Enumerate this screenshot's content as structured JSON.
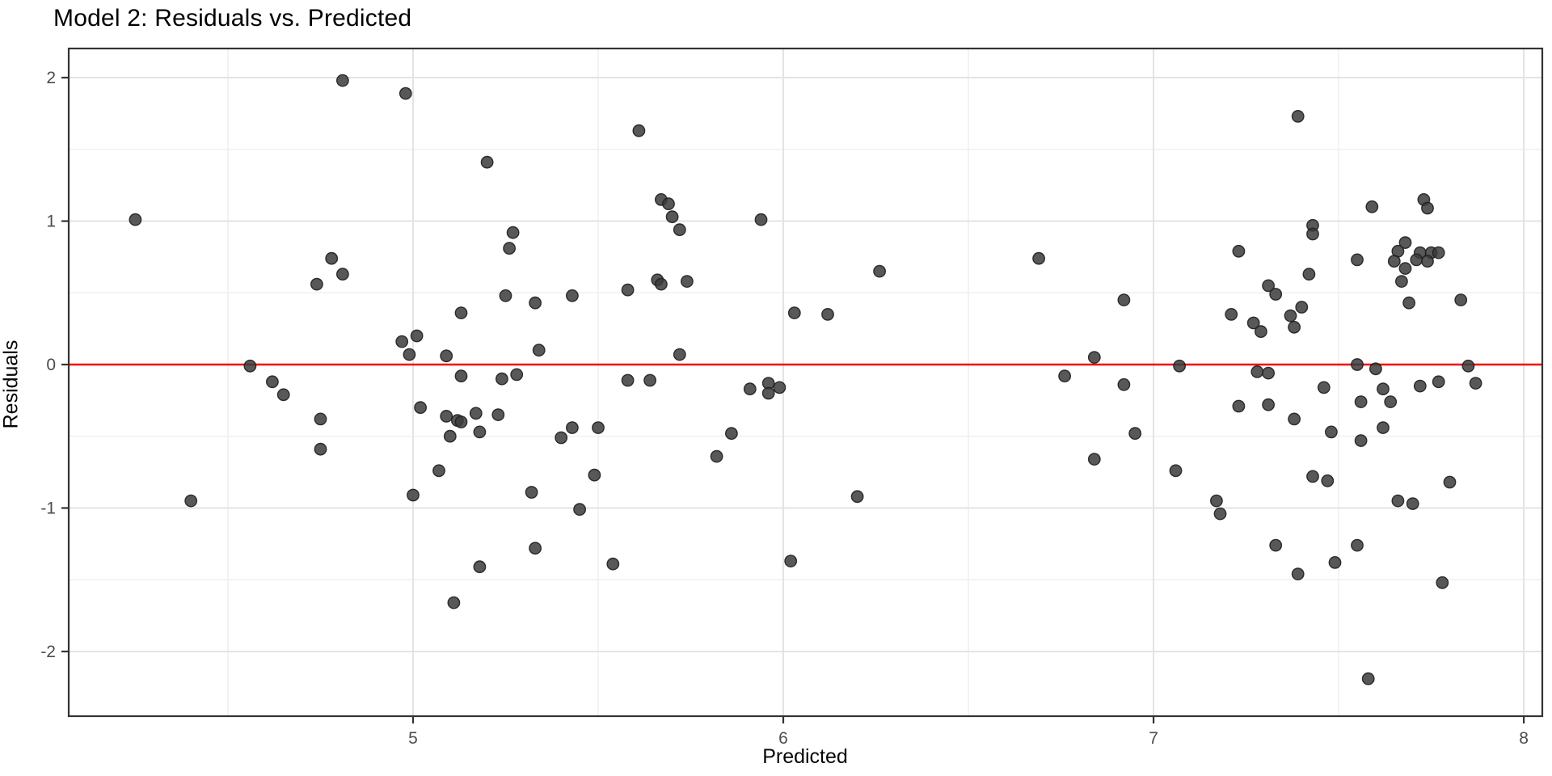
{
  "chart_data": {
    "type": "scatter",
    "title": "Model 2: Residuals vs. Predicted",
    "xlabel": "Predicted",
    "ylabel": "Residuals",
    "xlim": [
      4.07,
      8.05
    ],
    "ylim": [
      -2.451,
      2.203
    ],
    "x_major_ticks": [
      5,
      6,
      7,
      8
    ],
    "x_minor_ticks": [
      4.5,
      5.5,
      6.5,
      7.5
    ],
    "y_major_ticks": [
      -2,
      -1,
      0,
      1,
      2
    ],
    "y_minor_ticks": [
      -1.5,
      -0.5,
      0.5,
      1.5
    ],
    "grid": true,
    "legend_position": "none",
    "reference_line_y": 0,
    "colors": {
      "point_fill": "#3b3b3b",
      "point_stroke": "#1f1f1f",
      "reference_line": "#f40000",
      "grid_major": "#e3e3e3",
      "grid_minor": "#f0f0f0",
      "panel_border": "#333333",
      "tick_mark": "#333333",
      "tick_label": "#4d4d4d",
      "title_color": "#000000"
    },
    "points": [
      [
        4.25,
        1.01
      ],
      [
        4.81,
        1.98
      ],
      [
        4.98,
        1.89
      ],
      [
        4.78,
        0.74
      ],
      [
        4.81,
        0.63
      ],
      [
        4.74,
        0.56
      ],
      [
        4.97,
        0.16
      ],
      [
        5.01,
        0.2
      ],
      [
        4.99,
        0.07
      ],
      [
        5.09,
        0.06
      ],
      [
        4.56,
        -0.01
      ],
      [
        5.61,
        1.63
      ],
      [
        5.2,
        1.41
      ],
      [
        5.67,
        1.15
      ],
      [
        5.69,
        1.12
      ],
      [
        5.7,
        1.03
      ],
      [
        5.72,
        0.94
      ],
      [
        5.94,
        1.01
      ],
      [
        5.27,
        0.92
      ],
      [
        5.26,
        0.81
      ],
      [
        5.66,
        0.59
      ],
      [
        5.67,
        0.56
      ],
      [
        5.74,
        0.58
      ],
      [
        5.58,
        0.52
      ],
      [
        5.43,
        0.48
      ],
      [
        5.25,
        0.48
      ],
      [
        5.33,
        0.43
      ],
      [
        5.13,
        0.36
      ],
      [
        5.34,
        0.1
      ],
      [
        5.72,
        0.07
      ],
      [
        6.03,
        0.36
      ],
      [
        6.69,
        0.74
      ],
      [
        6.26,
        0.65
      ],
      [
        6.92,
        0.45
      ],
      [
        6.12,
        0.35
      ],
      [
        6.84,
        0.05
      ],
      [
        7.07,
        -0.01
      ],
      [
        6.76,
        -0.08
      ],
      [
        7.39,
        1.73
      ],
      [
        7.73,
        1.15
      ],
      [
        7.74,
        1.09
      ],
      [
        7.59,
        1.1
      ],
      [
        7.43,
        0.97
      ],
      [
        7.43,
        0.91
      ],
      [
        7.23,
        0.79
      ],
      [
        7.68,
        0.85
      ],
      [
        7.66,
        0.79
      ],
      [
        7.72,
        0.78
      ],
      [
        7.75,
        0.78
      ],
      [
        7.77,
        0.78
      ],
      [
        7.65,
        0.72
      ],
      [
        7.71,
        0.73
      ],
      [
        7.74,
        0.72
      ],
      [
        7.55,
        0.73
      ],
      [
        7.68,
        0.67
      ],
      [
        7.42,
        0.63
      ],
      [
        7.31,
        0.55
      ],
      [
        7.33,
        0.49
      ],
      [
        7.67,
        0.58
      ],
      [
        7.69,
        0.43
      ],
      [
        7.21,
        0.35
      ],
      [
        7.27,
        0.29
      ],
      [
        7.29,
        0.23
      ],
      [
        7.4,
        0.4
      ],
      [
        7.37,
        0.34
      ],
      [
        7.38,
        0.26
      ],
      [
        7.83,
        0.45
      ],
      [
        7.55,
        0.0
      ],
      [
        7.85,
        -0.01
      ],
      [
        4.62,
        -0.12
      ],
      [
        4.65,
        -0.21
      ],
      [
        4.75,
        -0.38
      ],
      [
        4.75,
        -0.59
      ],
      [
        4.4,
        -0.95
      ],
      [
        5.02,
        -0.3
      ],
      [
        5.0,
        -0.91
      ],
      [
        5.13,
        -0.08
      ],
      [
        5.24,
        -0.1
      ],
      [
        5.28,
        -0.07
      ],
      [
        5.58,
        -0.11
      ],
      [
        5.64,
        -0.11
      ],
      [
        5.91,
        -0.17
      ],
      [
        5.96,
        -0.13
      ],
      [
        5.96,
        -0.2
      ],
      [
        5.99,
        -0.16
      ],
      [
        5.09,
        -0.36
      ],
      [
        5.12,
        -0.39
      ],
      [
        5.13,
        -0.4
      ],
      [
        5.17,
        -0.34
      ],
      [
        5.23,
        -0.35
      ],
      [
        5.1,
        -0.5
      ],
      [
        5.18,
        -0.47
      ],
      [
        5.43,
        -0.44
      ],
      [
        5.4,
        -0.51
      ],
      [
        5.5,
        -0.44
      ],
      [
        5.07,
        -0.74
      ],
      [
        5.49,
        -0.77
      ],
      [
        5.32,
        -0.89
      ],
      [
        5.45,
        -1.01
      ],
      [
        5.33,
        -1.28
      ],
      [
        5.18,
        -1.41
      ],
      [
        5.54,
        -1.39
      ],
      [
        6.02,
        -1.37
      ],
      [
        5.11,
        -1.66
      ],
      [
        5.82,
        -0.64
      ],
      [
        5.86,
        -0.48
      ],
      [
        6.92,
        -0.14
      ],
      [
        6.95,
        -0.48
      ],
      [
        6.84,
        -0.66
      ],
      [
        6.2,
        -0.92
      ],
      [
        7.06,
        -0.74
      ],
      [
        7.28,
        -0.05
      ],
      [
        7.31,
        -0.06
      ],
      [
        7.46,
        -0.16
      ],
      [
        7.23,
        -0.29
      ],
      [
        7.31,
        -0.28
      ],
      [
        7.38,
        -0.38
      ],
      [
        7.48,
        -0.47
      ],
      [
        7.6,
        -0.03
      ],
      [
        7.62,
        -0.17
      ],
      [
        7.72,
        -0.15
      ],
      [
        7.77,
        -0.12
      ],
      [
        7.87,
        -0.13
      ],
      [
        7.56,
        -0.26
      ],
      [
        7.64,
        -0.26
      ],
      [
        7.62,
        -0.44
      ],
      [
        7.56,
        -0.53
      ],
      [
        7.43,
        -0.78
      ],
      [
        7.47,
        -0.81
      ],
      [
        7.8,
        -0.82
      ],
      [
        7.17,
        -0.95
      ],
      [
        7.18,
        -1.04
      ],
      [
        7.66,
        -0.95
      ],
      [
        7.7,
        -0.97
      ],
      [
        7.33,
        -1.26
      ],
      [
        7.55,
        -1.26
      ],
      [
        7.49,
        -1.38
      ],
      [
        7.39,
        -1.46
      ],
      [
        7.78,
        -1.52
      ],
      [
        7.58,
        -2.19
      ]
    ]
  }
}
